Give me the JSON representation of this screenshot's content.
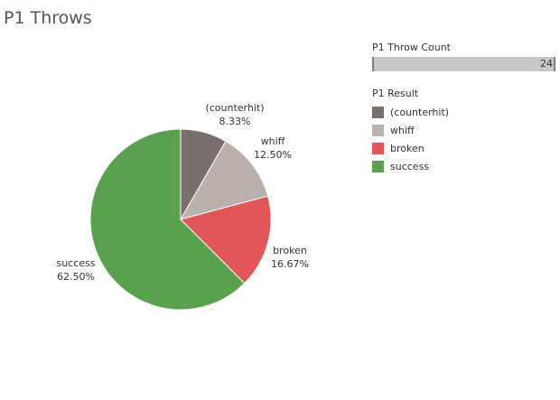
{
  "page": {
    "title": "P1 Throws"
  },
  "throw_count": {
    "label": "P1 Throw Count",
    "value": 24,
    "max": 24
  },
  "legend": {
    "title": "P1 Result",
    "items": [
      {
        "label": "(counterhit)",
        "color": "#79706e"
      },
      {
        "label": "whiff",
        "color": "#bab0ac"
      },
      {
        "label": "broken",
        "color": "#e15759"
      },
      {
        "label": "success",
        "color": "#59a14f"
      }
    ]
  },
  "chart_data": {
    "type": "pie",
    "title": "P1 Throws",
    "categories": [
      "(counterhit)",
      "whiff",
      "broken",
      "success"
    ],
    "values": [
      8.33,
      12.5,
      16.67,
      62.5
    ],
    "value_labels": [
      "8.33%",
      "12.50%",
      "16.67%",
      "62.50%"
    ],
    "colors": [
      "#79706e",
      "#bab0ac",
      "#e15759",
      "#59a14f"
    ],
    "legend_position": "right"
  }
}
